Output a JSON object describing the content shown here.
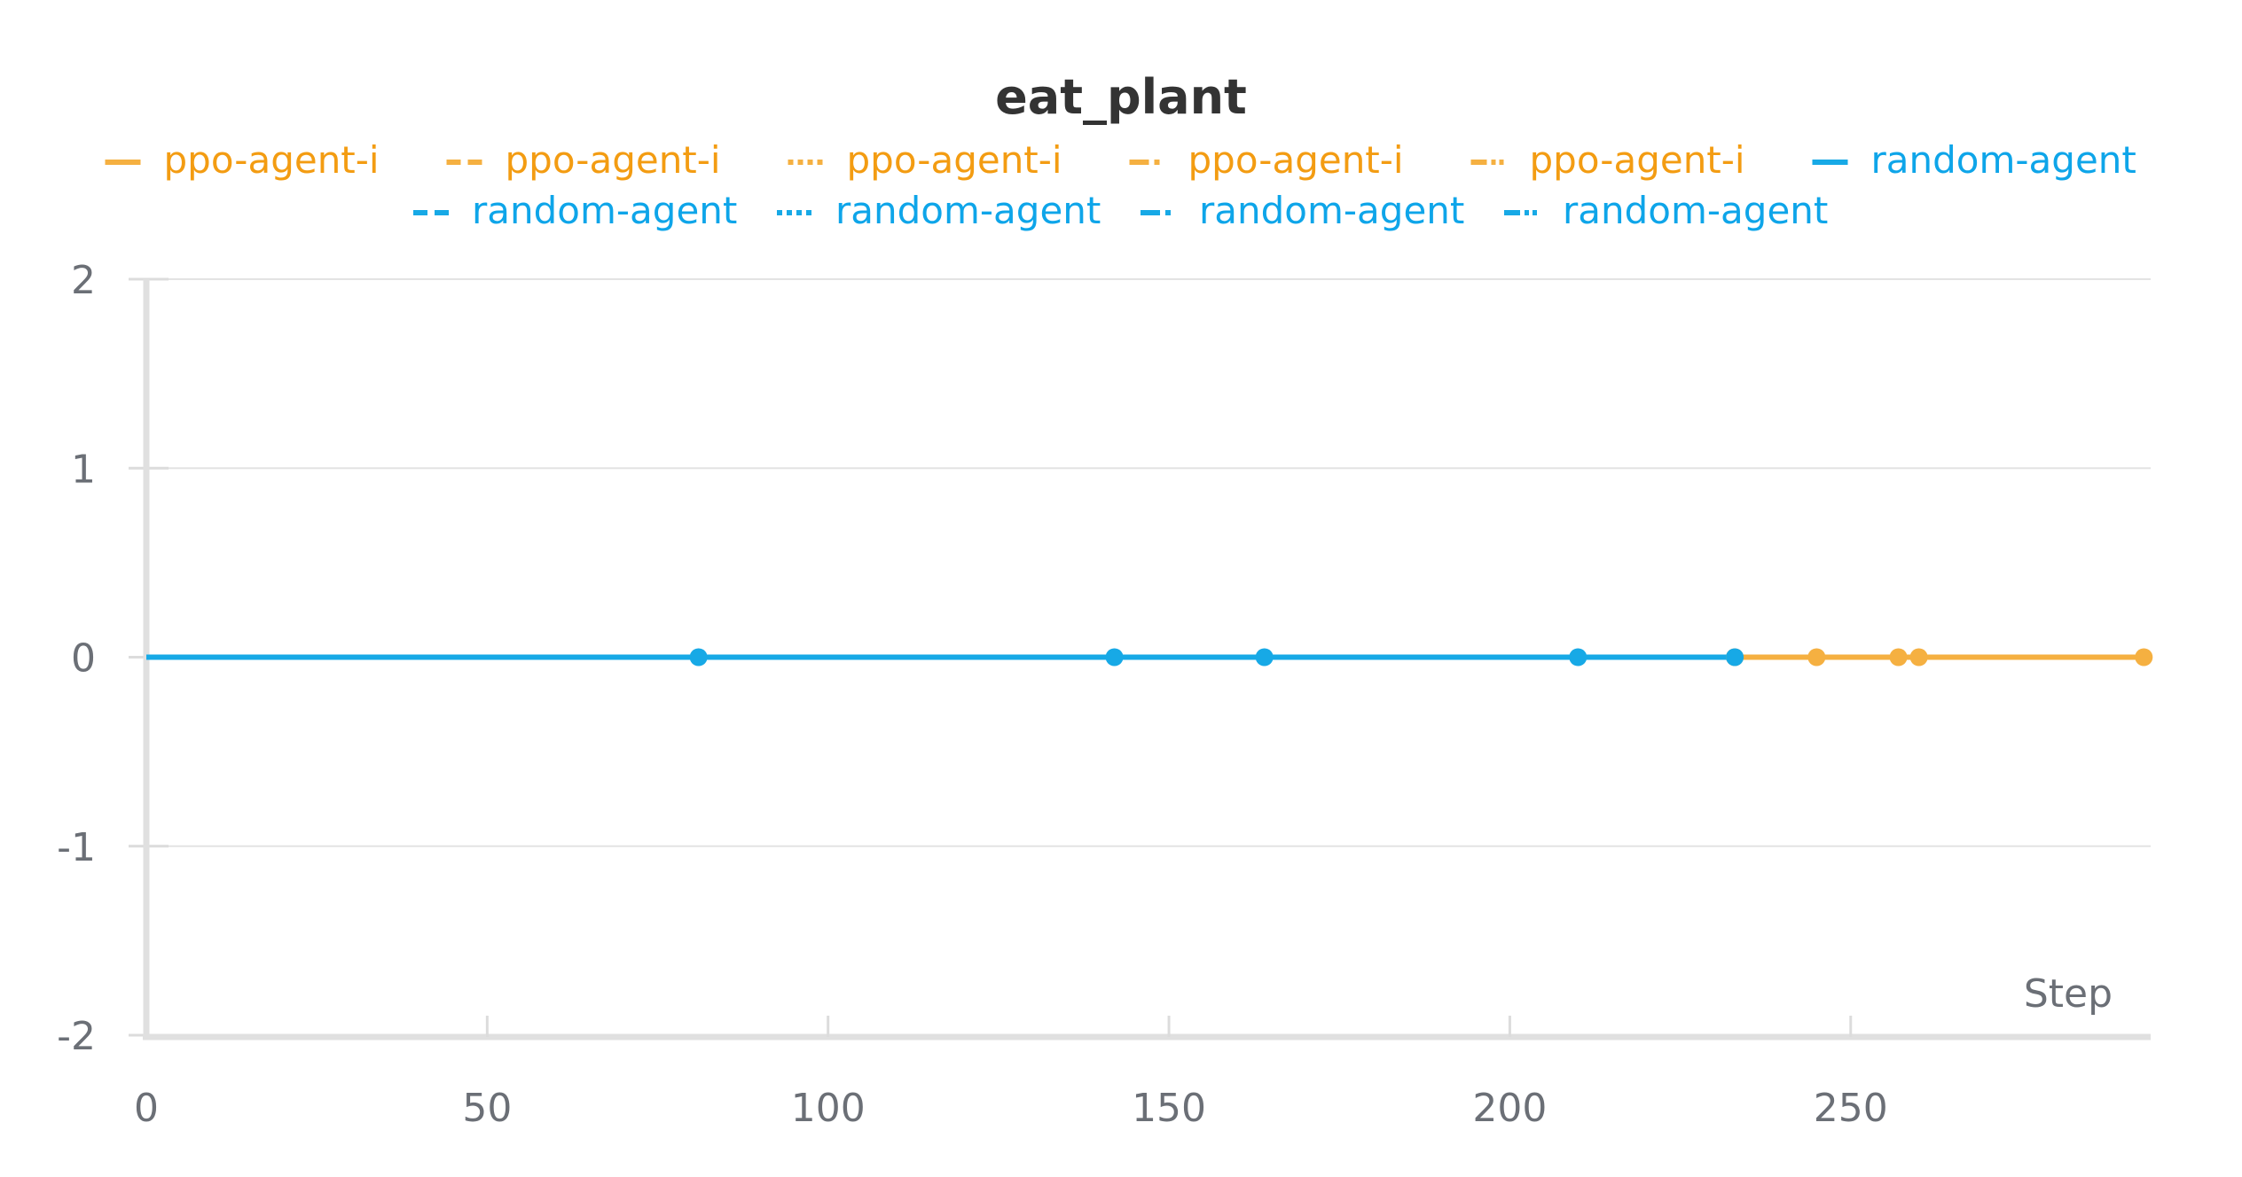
{
  "chart_data": {
    "type": "line",
    "title": "eat_plant",
    "xlabel": "Step",
    "ylabel": "",
    "xlim": [
      0,
      294
    ],
    "ylim": [
      -2,
      2
    ],
    "xticks": [
      0,
      50,
      100,
      150,
      200,
      250
    ],
    "yticks": [
      -2,
      -1,
      0,
      1,
      2
    ],
    "grid": true,
    "legend_position": "top",
    "colors": {
      "ppo": "#f5b041",
      "random": "#17a9e6",
      "ppo_text": "#f39c12",
      "random_text": "#0ea5e9"
    },
    "series": [
      {
        "name": "ppo-agent-i",
        "group": "ppo",
        "dash": "solid",
        "points": [
          [
            0,
            0
          ],
          [
            233,
            0
          ],
          [
            245,
            0
          ],
          [
            257,
            0
          ],
          [
            260,
            0
          ],
          [
            293,
            0
          ]
        ]
      },
      {
        "name": "ppo-agent-i",
        "group": "ppo",
        "dash": "dashed",
        "points": [
          [
            0,
            0
          ],
          [
            164,
            0
          ],
          [
            293,
            0
          ]
        ]
      },
      {
        "name": "ppo-agent-i",
        "group": "ppo",
        "dash": "dotted",
        "points": [
          [
            0,
            0
          ],
          [
            164,
            0
          ],
          [
            232,
            0
          ]
        ]
      },
      {
        "name": "ppo-agent-i",
        "group": "ppo",
        "dash": "dashdot",
        "points": [
          [
            0,
            0
          ],
          [
            164,
            0
          ],
          [
            232,
            0
          ]
        ]
      },
      {
        "name": "ppo-agent-i",
        "group": "ppo",
        "dash": "dashdotdot",
        "points": [
          [
            0,
            0
          ],
          [
            164,
            0
          ],
          [
            232,
            0
          ]
        ]
      },
      {
        "name": "random-agent",
        "group": "random",
        "dash": "solid",
        "points": [
          [
            0,
            0
          ],
          [
            81,
            0
          ],
          [
            142,
            0
          ],
          [
            164,
            0
          ],
          [
            210,
            0
          ],
          [
            233,
            0
          ]
        ]
      },
      {
        "name": "random-agent",
        "group": "random",
        "dash": "dashed",
        "points": [
          [
            0,
            0
          ],
          [
            142,
            0
          ]
        ]
      },
      {
        "name": "random-agent",
        "group": "random",
        "dash": "dotted",
        "points": [
          [
            0,
            0
          ],
          [
            81,
            0
          ]
        ]
      },
      {
        "name": "random-agent",
        "group": "random",
        "dash": "dashdot",
        "points": [
          [
            0,
            0
          ],
          [
            164,
            0
          ]
        ]
      },
      {
        "name": "random-agent",
        "group": "random",
        "dash": "dashdotdot",
        "points": [
          [
            0,
            0
          ],
          [
            210,
            0
          ]
        ]
      }
    ]
  }
}
